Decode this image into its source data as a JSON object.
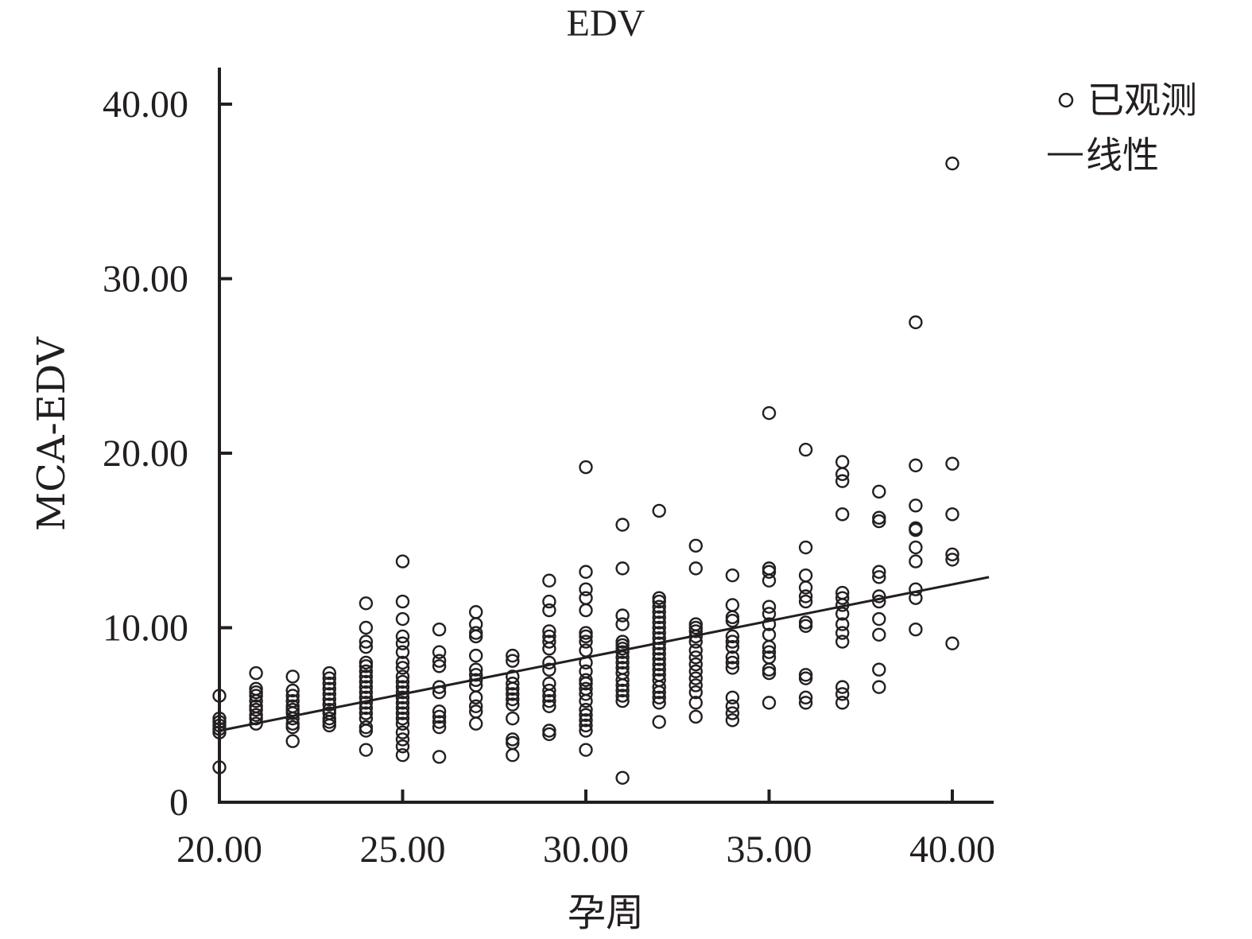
{
  "chart_data": {
    "type": "scatter",
    "title": "EDV",
    "xlabel": "孕周",
    "ylabel": "MCA-EDV",
    "xlim": [
      20,
      41
    ],
    "ylim": [
      0,
      40
    ],
    "xticks": [
      20,
      25,
      30,
      35,
      40
    ],
    "xtick_labels": [
      "20.00",
      "25.00",
      "30.00",
      "35.00",
      "40.00"
    ],
    "yticks": [
      0,
      10,
      20,
      30,
      40
    ],
    "ytick_labels": [
      "0",
      "10.00",
      "20.00",
      "30.00",
      "40.00"
    ],
    "grid": false,
    "legend": {
      "position": "top-right",
      "entries": [
        {
          "marker": "circle",
          "label": "已观测"
        },
        {
          "marker": "line",
          "label": "线性"
        }
      ]
    },
    "series": [
      {
        "name": "已观测",
        "kind": "points",
        "points": [
          [
            20,
            6.1
          ],
          [
            20,
            4.8
          ],
          [
            20,
            4.6
          ],
          [
            20,
            4.4
          ],
          [
            20,
            4.2
          ],
          [
            20,
            4.0
          ],
          [
            20,
            2.0
          ],
          [
            21,
            7.4
          ],
          [
            21,
            6.5
          ],
          [
            21,
            6.3
          ],
          [
            21,
            6.1
          ],
          [
            21,
            5.8
          ],
          [
            21,
            5.5
          ],
          [
            21,
            5.3
          ],
          [
            21,
            5.0
          ],
          [
            21,
            4.8
          ],
          [
            21,
            4.5
          ],
          [
            22,
            7.2
          ],
          [
            22,
            6.4
          ],
          [
            22,
            6.1
          ],
          [
            22,
            5.8
          ],
          [
            22,
            5.5
          ],
          [
            22,
            5.3
          ],
          [
            22,
            5.1
          ],
          [
            22,
            4.8
          ],
          [
            22,
            4.5
          ],
          [
            22,
            4.3
          ],
          [
            22,
            3.5
          ],
          [
            23,
            7.4
          ],
          [
            23,
            7.1
          ],
          [
            23,
            6.8
          ],
          [
            23,
            6.5
          ],
          [
            23,
            6.2
          ],
          [
            23,
            5.9
          ],
          [
            23,
            5.6
          ],
          [
            23,
            5.3
          ],
          [
            23,
            5.1
          ],
          [
            23,
            4.8
          ],
          [
            23,
            4.6
          ],
          [
            23,
            4.4
          ],
          [
            24,
            11.4
          ],
          [
            24,
            10.0
          ],
          [
            24,
            9.2
          ],
          [
            24,
            8.9
          ],
          [
            24,
            8.0
          ],
          [
            24,
            7.8
          ],
          [
            24,
            7.5
          ],
          [
            24,
            7.2
          ],
          [
            24,
            6.9
          ],
          [
            24,
            6.6
          ],
          [
            24,
            6.3
          ],
          [
            24,
            6.0
          ],
          [
            24,
            5.7
          ],
          [
            24,
            5.4
          ],
          [
            24,
            5.1
          ],
          [
            24,
            4.8
          ],
          [
            24,
            4.3
          ],
          [
            24,
            4.1
          ],
          [
            24,
            3.0
          ],
          [
            25,
            13.8
          ],
          [
            25,
            11.5
          ],
          [
            25,
            10.5
          ],
          [
            25,
            9.5
          ],
          [
            25,
            9.1
          ],
          [
            25,
            8.6
          ],
          [
            25,
            8.0
          ],
          [
            25,
            7.7
          ],
          [
            25,
            7.2
          ],
          [
            25,
            6.9
          ],
          [
            25,
            6.6
          ],
          [
            25,
            6.3
          ],
          [
            25,
            6.0
          ],
          [
            25,
            5.7
          ],
          [
            25,
            5.4
          ],
          [
            25,
            5.1
          ],
          [
            25,
            4.8
          ],
          [
            25,
            4.5
          ],
          [
            25,
            4.0
          ],
          [
            25,
            3.6
          ],
          [
            25,
            3.2
          ],
          [
            25,
            2.7
          ],
          [
            26,
            9.9
          ],
          [
            26,
            8.6
          ],
          [
            26,
            8.1
          ],
          [
            26,
            7.8
          ],
          [
            26,
            6.6
          ],
          [
            26,
            6.3
          ],
          [
            26,
            5.2
          ],
          [
            26,
            4.9
          ],
          [
            26,
            4.6
          ],
          [
            26,
            4.3
          ],
          [
            26,
            2.6
          ],
          [
            27,
            10.9
          ],
          [
            27,
            10.2
          ],
          [
            27,
            9.7
          ],
          [
            27,
            9.5
          ],
          [
            27,
            8.4
          ],
          [
            27,
            7.6
          ],
          [
            27,
            7.3
          ],
          [
            27,
            7.0
          ],
          [
            27,
            6.7
          ],
          [
            27,
            6.0
          ],
          [
            27,
            5.5
          ],
          [
            27,
            5.2
          ],
          [
            27,
            4.5
          ],
          [
            28,
            8.4
          ],
          [
            28,
            8.1
          ],
          [
            28,
            7.2
          ],
          [
            28,
            6.8
          ],
          [
            28,
            6.5
          ],
          [
            28,
            6.2
          ],
          [
            28,
            5.9
          ],
          [
            28,
            5.6
          ],
          [
            28,
            4.8
          ],
          [
            28,
            3.6
          ],
          [
            28,
            3.4
          ],
          [
            28,
            2.7
          ],
          [
            29,
            12.7
          ],
          [
            29,
            11.5
          ],
          [
            29,
            11.0
          ],
          [
            29,
            9.8
          ],
          [
            29,
            9.5
          ],
          [
            29,
            9.2
          ],
          [
            29,
            8.8
          ],
          [
            29,
            8.0
          ],
          [
            29,
            7.6
          ],
          [
            29,
            6.8
          ],
          [
            29,
            6.4
          ],
          [
            29,
            6.1
          ],
          [
            29,
            5.8
          ],
          [
            29,
            5.5
          ],
          [
            29,
            4.1
          ],
          [
            29,
            3.9
          ],
          [
            30,
            19.2
          ],
          [
            30,
            13.2
          ],
          [
            30,
            12.2
          ],
          [
            30,
            11.7
          ],
          [
            30,
            11.0
          ],
          [
            30,
            9.7
          ],
          [
            30,
            9.5
          ],
          [
            30,
            9.2
          ],
          [
            30,
            8.7
          ],
          [
            30,
            8.0
          ],
          [
            30,
            7.5
          ],
          [
            30,
            7.0
          ],
          [
            30,
            6.8
          ],
          [
            30,
            6.5
          ],
          [
            30,
            6.2
          ],
          [
            30,
            5.8
          ],
          [
            30,
            5.3
          ],
          [
            30,
            5.0
          ],
          [
            30,
            4.7
          ],
          [
            30,
            4.4
          ],
          [
            30,
            4.1
          ],
          [
            30,
            3.0
          ],
          [
            31,
            15.9
          ],
          [
            31,
            13.4
          ],
          [
            31,
            10.7
          ],
          [
            31,
            10.2
          ],
          [
            31,
            9.2
          ],
          [
            31,
            9.0
          ],
          [
            31,
            8.8
          ],
          [
            31,
            8.6
          ],
          [
            31,
            8.3
          ],
          [
            31,
            8.0
          ],
          [
            31,
            7.7
          ],
          [
            31,
            7.4
          ],
          [
            31,
            7.0
          ],
          [
            31,
            6.7
          ],
          [
            31,
            6.4
          ],
          [
            31,
            6.1
          ],
          [
            31,
            5.8
          ],
          [
            31,
            1.4
          ],
          [
            32,
            16.7
          ],
          [
            32,
            11.7
          ],
          [
            32,
            11.5
          ],
          [
            32,
            11.2
          ],
          [
            32,
            10.9
          ],
          [
            32,
            10.6
          ],
          [
            32,
            10.3
          ],
          [
            32,
            10.0
          ],
          [
            32,
            9.7
          ],
          [
            32,
            9.4
          ],
          [
            32,
            9.1
          ],
          [
            32,
            8.8
          ],
          [
            32,
            8.5
          ],
          [
            32,
            8.2
          ],
          [
            32,
            7.9
          ],
          [
            32,
            7.6
          ],
          [
            32,
            7.3
          ],
          [
            32,
            7.0
          ],
          [
            32,
            6.6
          ],
          [
            32,
            6.3
          ],
          [
            32,
            6.0
          ],
          [
            32,
            5.7
          ],
          [
            32,
            4.6
          ],
          [
            33,
            14.7
          ],
          [
            33,
            13.4
          ],
          [
            33,
            10.2
          ],
          [
            33,
            10.0
          ],
          [
            33,
            9.8
          ],
          [
            33,
            9.5
          ],
          [
            33,
            9.2
          ],
          [
            33,
            8.7
          ],
          [
            33,
            8.3
          ],
          [
            33,
            7.9
          ],
          [
            33,
            7.5
          ],
          [
            33,
            7.1
          ],
          [
            33,
            6.7
          ],
          [
            33,
            6.3
          ],
          [
            33,
            5.7
          ],
          [
            33,
            4.9
          ],
          [
            34,
            13.0
          ],
          [
            34,
            11.3
          ],
          [
            34,
            10.6
          ],
          [
            34,
            10.4
          ],
          [
            34,
            9.5
          ],
          [
            34,
            9.2
          ],
          [
            34,
            8.9
          ],
          [
            34,
            8.3
          ],
          [
            34,
            8.0
          ],
          [
            34,
            7.7
          ],
          [
            34,
            6.0
          ],
          [
            34,
            5.5
          ],
          [
            34,
            5.1
          ],
          [
            34,
            4.7
          ],
          [
            35,
            22.3
          ],
          [
            35,
            13.4
          ],
          [
            35,
            13.2
          ],
          [
            35,
            12.7
          ],
          [
            35,
            11.2
          ],
          [
            35,
            10.8
          ],
          [
            35,
            10.2
          ],
          [
            35,
            9.6
          ],
          [
            35,
            8.9
          ],
          [
            35,
            8.6
          ],
          [
            35,
            8.3
          ],
          [
            35,
            7.6
          ],
          [
            35,
            7.4
          ],
          [
            35,
            5.7
          ],
          [
            36,
            20.2
          ],
          [
            36,
            14.6
          ],
          [
            36,
            13.0
          ],
          [
            36,
            12.3
          ],
          [
            36,
            11.8
          ],
          [
            36,
            11.5
          ],
          [
            36,
            10.3
          ],
          [
            36,
            10.1
          ],
          [
            36,
            7.3
          ],
          [
            36,
            7.1
          ],
          [
            36,
            6.0
          ],
          [
            36,
            5.7
          ],
          [
            37,
            19.5
          ],
          [
            37,
            18.8
          ],
          [
            37,
            18.4
          ],
          [
            37,
            16.5
          ],
          [
            37,
            12.0
          ],
          [
            37,
            11.7
          ],
          [
            37,
            11.3
          ],
          [
            37,
            10.8
          ],
          [
            37,
            10.2
          ],
          [
            37,
            9.7
          ],
          [
            37,
            9.2
          ],
          [
            37,
            6.6
          ],
          [
            37,
            6.2
          ],
          [
            37,
            5.7
          ],
          [
            38,
            17.8
          ],
          [
            38,
            16.3
          ],
          [
            38,
            16.1
          ],
          [
            38,
            13.2
          ],
          [
            38,
            12.9
          ],
          [
            38,
            11.8
          ],
          [
            38,
            11.5
          ],
          [
            38,
            10.5
          ],
          [
            38,
            9.6
          ],
          [
            38,
            7.6
          ],
          [
            38,
            6.6
          ],
          [
            39,
            27.5
          ],
          [
            39,
            19.3
          ],
          [
            39,
            17.0
          ],
          [
            39,
            15.7
          ],
          [
            39,
            15.6
          ],
          [
            39,
            14.6
          ],
          [
            39,
            13.8
          ],
          [
            39,
            12.2
          ],
          [
            39,
            11.7
          ],
          [
            39,
            9.9
          ],
          [
            40,
            36.6
          ],
          [
            40,
            19.4
          ],
          [
            40,
            16.5
          ],
          [
            40,
            14.2
          ],
          [
            40,
            13.9
          ],
          [
            40,
            9.1
          ]
        ]
      },
      {
        "name": "线性",
        "kind": "line",
        "x": [
          20,
          41
        ],
        "y": [
          4.1,
          12.9
        ]
      }
    ]
  }
}
